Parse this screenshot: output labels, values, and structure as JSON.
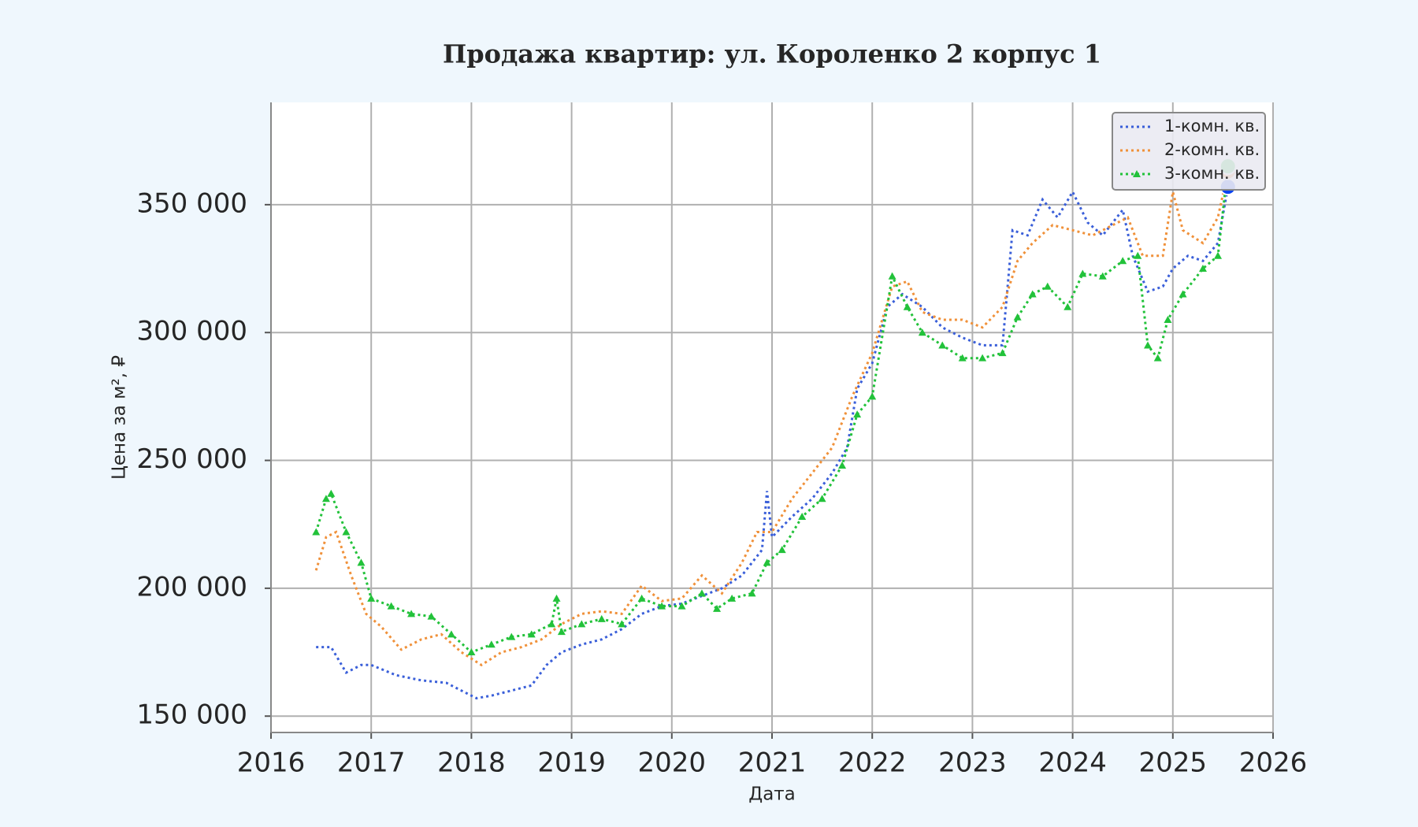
{
  "chart_data": {
    "type": "line",
    "title": "Продажа квартир: ул. Короленко 2 корпус 1",
    "x_label": "Дата",
    "y_label": "Цена за м², ₽",
    "xlim": [
      2016,
      2026
    ],
    "xticks": [
      2016,
      2017,
      2018,
      2019,
      2020,
      2021,
      2022,
      2023,
      2024,
      2025,
      2026
    ],
    "ylim": [
      143600,
      390000
    ],
    "yticks": [
      {
        "value": 150000,
        "label": "150 000"
      },
      {
        "value": 200000,
        "label": "200 000"
      },
      {
        "value": 250000,
        "label": "250 000"
      },
      {
        "value": 300000,
        "label": "300 000"
      },
      {
        "value": 350000,
        "label": "350 000"
      }
    ],
    "grid": true,
    "legend": "upper right",
    "line_style": "dotted",
    "series": [
      {
        "name": "1-комн. кв.",
        "color": "#3a5fd9",
        "end_color": "#0b43f0",
        "x": [
          2016.45,
          2016.6,
          2016.75,
          2016.9,
          2017.0,
          2017.25,
          2017.5,
          2017.75,
          2017.9,
          2018.05,
          2018.2,
          2018.4,
          2018.6,
          2018.75,
          2018.9,
          2019.1,
          2019.3,
          2019.5,
          2019.7,
          2019.9,
          2020.1,
          2020.3,
          2020.5,
          2020.7,
          2020.9,
          2020.95,
          2021.0,
          2021.2,
          2021.4,
          2021.6,
          2021.75,
          2021.85,
          2022.0,
          2022.15,
          2022.3,
          2022.5,
          2022.7,
          2022.9,
          2023.1,
          2023.3,
          2023.4,
          2023.55,
          2023.7,
          2023.85,
          2024.0,
          2024.15,
          2024.3,
          2024.5,
          2024.6,
          2024.75,
          2024.9,
          2025.0,
          2025.15,
          2025.3,
          2025.45,
          2025.55
        ],
        "values": [
          177000,
          177000,
          167000,
          170000,
          170000,
          166000,
          164000,
          163000,
          160000,
          157000,
          158000,
          160000,
          162000,
          170000,
          175000,
          178000,
          180000,
          184000,
          190000,
          193000,
          194000,
          197000,
          200000,
          205000,
          215000,
          238000,
          220000,
          228000,
          235000,
          245000,
          255000,
          278000,
          288000,
          310000,
          315000,
          310000,
          302000,
          298000,
          295000,
          295000,
          340000,
          338000,
          352000,
          345000,
          355000,
          343000,
          338000,
          348000,
          330000,
          316000,
          318000,
          325000,
          330000,
          328000,
          335000,
          357000
        ]
      },
      {
        "name": "2-комн. кв.",
        "color": "#f0913a",
        "end_color": "#f07a1a",
        "x": [
          2016.45,
          2016.55,
          2016.65,
          2016.8,
          2016.95,
          2017.1,
          2017.3,
          2017.5,
          2017.7,
          2017.9,
          2018.1,
          2018.3,
          2018.5,
          2018.7,
          2018.9,
          2019.1,
          2019.3,
          2019.5,
          2019.7,
          2019.9,
          2020.1,
          2020.3,
          2020.5,
          2020.7,
          2020.85,
          2021.0,
          2021.2,
          2021.4,
          2021.6,
          2021.8,
          2022.0,
          2022.2,
          2022.35,
          2022.5,
          2022.7,
          2022.9,
          2023.1,
          2023.3,
          2023.45,
          2023.6,
          2023.8,
          2024.0,
          2024.2,
          2024.4,
          2024.55,
          2024.7,
          2024.9,
          2025.0,
          2025.1,
          2025.3,
          2025.45,
          2025.55
        ],
        "values": [
          207000,
          220000,
          222000,
          205000,
          190000,
          185000,
          176000,
          180000,
          182000,
          175000,
          170000,
          175000,
          177000,
          180000,
          186000,
          190000,
          191000,
          190000,
          201000,
          195000,
          196000,
          205000,
          198000,
          210000,
          222000,
          222000,
          235000,
          245000,
          255000,
          275000,
          292000,
          318000,
          320000,
          308000,
          305000,
          305000,
          302000,
          310000,
          328000,
          335000,
          342000,
          340000,
          338000,
          342000,
          345000,
          330000,
          330000,
          355000,
          340000,
          335000,
          345000,
          363000
        ]
      },
      {
        "name": "3-комн. кв.",
        "color": "#22c23a",
        "end_color": "#22c23a",
        "marker": "triangle",
        "x": [
          2016.45,
          2016.55,
          2016.6,
          2016.75,
          2016.9,
          2017.0,
          2017.2,
          2017.4,
          2017.6,
          2017.8,
          2018.0,
          2018.2,
          2018.4,
          2018.6,
          2018.8,
          2018.85,
          2018.9,
          2019.1,
          2019.3,
          2019.5,
          2019.7,
          2019.9,
          2020.1,
          2020.3,
          2020.45,
          2020.6,
          2020.8,
          2020.95,
          2021.1,
          2021.3,
          2021.5,
          2021.7,
          2021.85,
          2022.0,
          2022.2,
          2022.35,
          2022.5,
          2022.7,
          2022.9,
          2023.1,
          2023.3,
          2023.45,
          2023.6,
          2023.75,
          2023.95,
          2024.1,
          2024.3,
          2024.5,
          2024.65,
          2024.75,
          2024.85,
          2024.95,
          2025.1,
          2025.3,
          2025.45,
          2025.55
        ],
        "values": [
          222000,
          235000,
          237000,
          222000,
          210000,
          196000,
          193000,
          190000,
          189000,
          182000,
          175000,
          178000,
          181000,
          182000,
          186000,
          196000,
          183000,
          186000,
          188000,
          186000,
          196000,
          193000,
          193000,
          198000,
          192000,
          196000,
          198000,
          210000,
          215000,
          228000,
          235000,
          248000,
          268000,
          275000,
          322000,
          310000,
          300000,
          295000,
          290000,
          290000,
          292000,
          306000,
          315000,
          318000,
          310000,
          323000,
          322000,
          328000,
          330000,
          295000,
          290000,
          305000,
          315000,
          325000,
          330000,
          365000
        ]
      }
    ]
  }
}
